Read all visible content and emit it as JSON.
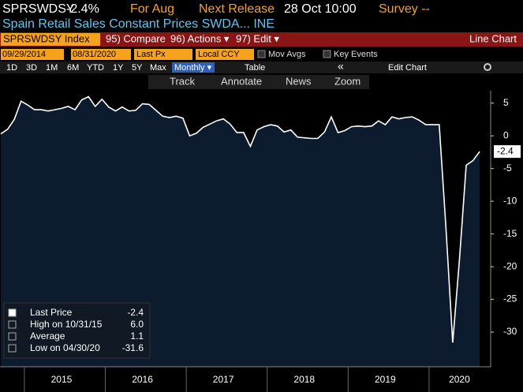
{
  "ui": {
    "ticker": "SPRSWDSY",
    "change": "-2.4%",
    "period_label": "For Aug",
    "release_label": "Next Release",
    "release_time": "28 Oct 10:00",
    "survey": "Survey --",
    "description": "Spain Retail Sales Constant Prices SWDA... INE",
    "security": "SPRSWDSY Index",
    "compare": "95) Compare",
    "actions": "96) Actions ▾",
    "edit": "97) Edit ▾",
    "chart_kind": "Line Chart",
    "start_date": "09/29/2014",
    "end_date": "08/31/2020",
    "field": "Last Px",
    "currency": "Local CCY",
    "mov_avgs": "Mov Avgs",
    "key_events": "Key Events",
    "ranges": [
      "1D",
      "3D",
      "1M",
      "6M",
      "YTD",
      "1Y",
      "5Y",
      "Max"
    ],
    "frequency": "Monthly ▾",
    "table": "Table",
    "collapse": "«",
    "edit_chart": "Edit Chart",
    "tools": [
      "Track",
      "Annotate",
      "News",
      "Zoom"
    ],
    "stats": [
      {
        "name": "Last Price",
        "value": "-2.4"
      },
      {
        "name": "High on 10/31/15",
        "value": "6.0"
      },
      {
        "name": "Average",
        "value": "1.1"
      },
      {
        "name": "Low on 04/30/20",
        "value": "-31.6"
      }
    ]
  },
  "chart_data": {
    "type": "line",
    "categories": [
      null,
      null,
      null,
      null,
      null,
      null,
      null,
      null,
      null,
      "2015",
      null,
      null,
      null,
      null,
      null,
      null,
      null,
      null,
      null,
      null,
      null,
      "2016",
      null,
      null,
      null,
      null,
      null,
      null,
      null,
      null,
      null,
      null,
      null,
      "2017",
      null,
      null,
      null,
      null,
      null,
      null,
      null,
      null,
      null,
      null,
      null,
      "2018",
      null,
      null,
      null,
      null,
      null,
      null,
      null,
      null,
      null,
      null,
      null,
      "2019",
      null,
      null,
      null,
      null,
      null,
      null,
      null,
      null,
      null,
      null,
      "2020",
      null,
      null,
      null
    ],
    "series": [
      {
        "name": "Last Price",
        "color": "#ffffff",
        "values": [
          0.3,
          1.0,
          2.5,
          5.3,
          4.7,
          4.0,
          4.0,
          3.8,
          4.0,
          4.2,
          4.5,
          4.0,
          5.5,
          6.0,
          4.5,
          5.6,
          4.4,
          3.8,
          4.4,
          3.8,
          3.9,
          4.9,
          4.8,
          3.9,
          3.0,
          2.8,
          3.0,
          2.7,
          0.0,
          0.4,
          1.3,
          1.8,
          2.3,
          2.6,
          1.8,
          0.5,
          0.5,
          -1.6,
          0.9,
          1.4,
          1.7,
          1.5,
          0.6,
          0.9,
          -0.2,
          -0.3,
          -0.4,
          -0.4,
          0.6,
          2.9,
          0.5,
          0.8,
          1.4,
          1.5,
          1.4,
          1.5,
          2.3,
          1.7,
          2.9,
          2.6,
          2.8,
          2.9,
          2.4,
          1.7,
          1.7,
          1.7,
          -14.0,
          -31.6,
          -19.0,
          -4.5,
          -3.8,
          -2.4
        ]
      }
    ],
    "ylim": [
      -35.3,
      6.9
    ],
    "yticks": [
      5,
      0,
      -5,
      -10,
      -15,
      -20,
      -25,
      -30
    ],
    "grid": false,
    "area_color": "#0c1b2e"
  }
}
